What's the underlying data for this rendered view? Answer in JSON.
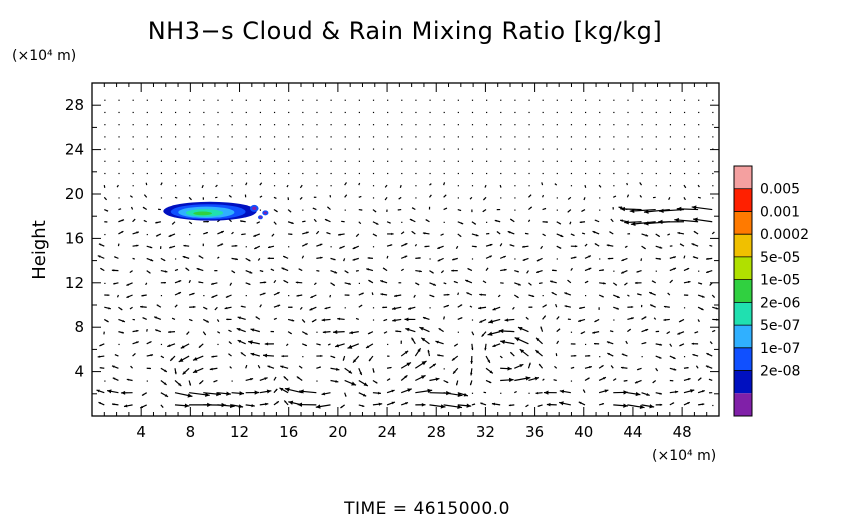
{
  "chart_data": {
    "type": "quiver",
    "title": "NH3−s Cloud & Rain Mixing Ratio [kg/kg]",
    "ylabel": "Height",
    "x_unit": "(×10⁴ m)",
    "y_unit": "(×10⁴ m)",
    "xlim": [
      0,
      51
    ],
    "ylim": [
      0,
      30
    ],
    "x_ticks": [
      4,
      8,
      12,
      16,
      20,
      24,
      28,
      32,
      36,
      40,
      44,
      48
    ],
    "y_ticks": [
      4,
      8,
      12,
      16,
      20,
      24,
      28
    ],
    "colorbar": {
      "labels": [
        "0.005",
        "0.001",
        "0.0002",
        "5e-05",
        "1e-05",
        "2e-06",
        "5e-07",
        "1e-07",
        "2e-08"
      ],
      "colors": [
        "#f4a0a0",
        "#ff2000",
        "#ff7a00",
        "#f0c000",
        "#b0e000",
        "#30d040",
        "#20e0b0",
        "#30b0ff",
        "#1050ff",
        "#0010c0",
        "#8020a8"
      ]
    },
    "cloud": {
      "x_range": [
        5.8,
        14.6
      ],
      "y_range": [
        17.6,
        19.3
      ],
      "peak_level": "2e-06",
      "colors": [
        "#0010c0",
        "#1050ff",
        "#30b0ff",
        "#20e0b0",
        "#30d040"
      ]
    },
    "wind_features": [
      {
        "type": "eddy",
        "center_x": 11.5,
        "center_y": 3.5
      },
      {
        "type": "eddy",
        "center_x": 23.5,
        "center_y": 5.5
      },
      {
        "type": "eddy",
        "center_x": 34.0,
        "center_y": 5.0
      },
      {
        "type": "jet",
        "level_y": 18.0,
        "x_range": [
          42,
          51
        ],
        "direction": "westward"
      }
    ],
    "time_label": "TIME = 4615000.0"
  }
}
